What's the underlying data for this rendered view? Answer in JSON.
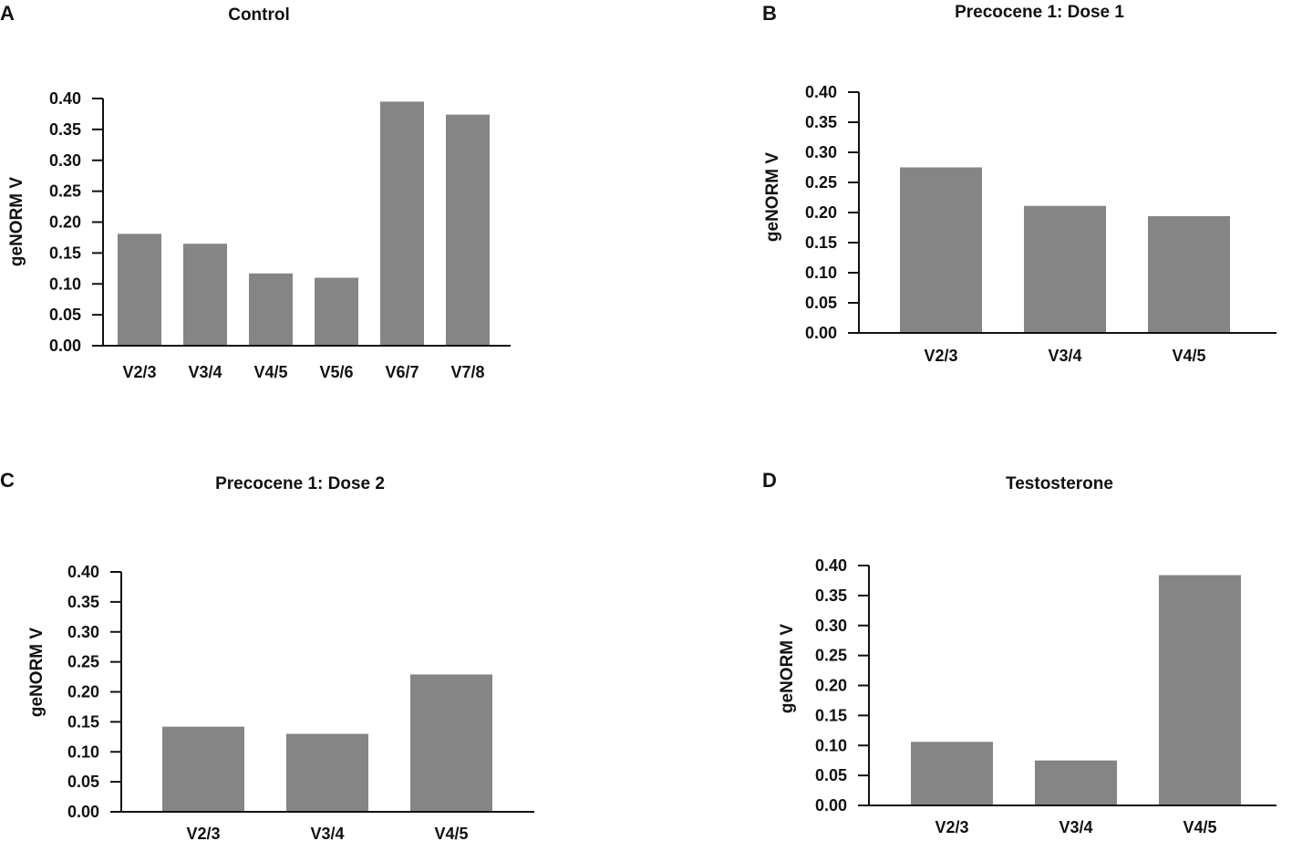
{
  "colors": {
    "bar": "#858585",
    "axis": "#111111"
  },
  "chart_data": [
    {
      "panel": "A",
      "type": "bar",
      "title": "Control",
      "ylabel": "geNORM V",
      "xlabel": "",
      "ylim": [
        0,
        0.4
      ],
      "yticks": [
        "0.00",
        "0.05",
        "0.10",
        "0.15",
        "0.20",
        "0.25",
        "0.30",
        "0.35",
        "0.40"
      ],
      "categories": [
        "V2/3",
        "V3/4",
        "V4/5",
        "V5/6",
        "V6/7",
        "V7/8"
      ],
      "values": [
        0.181,
        0.165,
        0.117,
        0.11,
        0.395,
        0.374
      ]
    },
    {
      "panel": "B",
      "type": "bar",
      "title": "Precocene 1: Dose 1",
      "ylabel": "geNORM V",
      "xlabel": "",
      "ylim": [
        0,
        0.4
      ],
      "yticks": [
        "0.00",
        "0.05",
        "0.10",
        "0.15",
        "0.20",
        "0.25",
        "0.30",
        "0.35",
        "0.40"
      ],
      "categories": [
        "V2/3",
        "V3/4",
        "V4/5"
      ],
      "values": [
        0.275,
        0.211,
        0.194
      ]
    },
    {
      "panel": "C",
      "type": "bar",
      "title": "Precocene 1: Dose 2",
      "ylabel": "geNORM V",
      "xlabel": "",
      "ylim": [
        0,
        0.4
      ],
      "yticks": [
        "0.00",
        "0.05",
        "0.10",
        "0.15",
        "0.20",
        "0.25",
        "0.30",
        "0.35",
        "0.40"
      ],
      "categories": [
        "V2/3",
        "V3/4",
        "V4/5"
      ],
      "values": [
        0.142,
        0.13,
        0.229
      ]
    },
    {
      "panel": "D",
      "type": "bar",
      "title": "Testosterone",
      "ylabel": "geNORM V",
      "xlabel": "",
      "ylim": [
        0,
        0.4
      ],
      "yticks": [
        "0.00",
        "0.05",
        "0.10",
        "0.15",
        "0.20",
        "0.25",
        "0.30",
        "0.35",
        "0.40"
      ],
      "categories": [
        "V2/3",
        "V3/4",
        "V4/5"
      ],
      "values": [
        0.106,
        0.075,
        0.384
      ]
    }
  ]
}
